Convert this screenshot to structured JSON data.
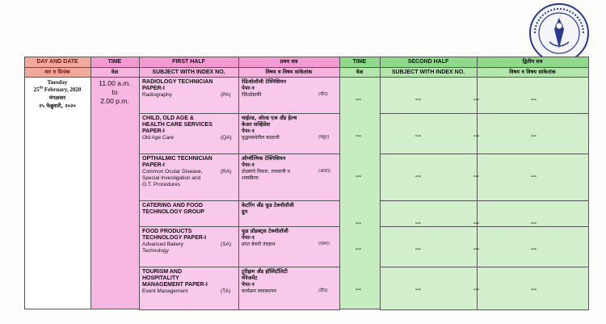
{
  "header": {
    "row1": [
      "DAY AND DATE",
      "TIME",
      "FIRST HALF",
      "प्रथम सत्र",
      "TIME",
      "SECOND HALF",
      "द्वितीय सत्र"
    ],
    "row2": [
      "वार व दिनांक",
      "वेळ",
      "SUBJECT WITH INDEX NO.",
      "विषय व विषय सांकेतांक",
      "वेळ",
      "SUBJECT WITH INDEX NO.",
      "विषय व विषय सांकेतांक"
    ]
  },
  "date": {
    "weekday": "Tuesday",
    "day": "25",
    "suffix": "th",
    "month_year": " February, 2020",
    "weekday_mr": "मंगळवार",
    "date_mr": "२५ फेब्रुवारी, २०२०"
  },
  "time": [
    "11.00 a.m.",
    "to",
    "2.00 p.m."
  ],
  "first_half": [
    {
      "title": [
        "RADIOLOGY TECHNICIAN",
        "PAPER-I"
      ],
      "subject": [
        "Radiography"
      ],
      "code": "(PA)",
      "title_mr": [
        "रेडिओलॉजी टेक्निशियन",
        "पेपर-१"
      ],
      "subject_mr": [
        "रेडिओग्राफी"
      ],
      "code_mr": "(पीए)"
    },
    {
      "title": [
        "CHILD, OLD AGE &",
        "HEALTH CARE SERVICES",
        "PAPER-I"
      ],
      "subject": [
        "Old Age Care"
      ],
      "code": "(QA)",
      "title_mr": [
        "चाईल्ड, ओल्ड एज अँड हेल्थ",
        "केअर सर्व्हिसेस",
        "पेपर-१"
      ],
      "subject_mr": [
        "वृद्धावस्थेतील काळजी"
      ],
      "code_mr": "(क्यूए)"
    },
    {
      "title": [
        "OPTHALMIC TECHNICIAN",
        "PAPER-I"
      ],
      "subject": [
        "Common Ocular Disease,",
        "Special Investigation and",
        "O.T. Procedures"
      ],
      "code": "(RA)",
      "title_mr": [
        "ऑप्थॅल्मिक टेक्निशियन",
        "पेपर-१"
      ],
      "subject_mr": [
        "डोळ्यांचे विकार, तपासणी व",
        "शस्त्रक्रिया"
      ],
      "code_mr": "(आरए)"
    },
    {
      "title": [
        "CATERING AND FOOD",
        "TECHNOLOGY GROUP"
      ],
      "title_mr": [
        "केटरिंग अँड फूड टेक्नॉलॉजी",
        "ग्रुप"
      ]
    },
    {
      "title": [
        "FOOD PRODUCTS",
        "TECHNOLOGY PAPER-I"
      ],
      "subject": [
        "Advanced Bakery",
        "Technology"
      ],
      "code": "(SA)",
      "title_mr": [
        "फूड प्रॉडक्ट्स टेक्नॉलॉजी",
        "पेपर-१"
      ],
      "subject_mr": [
        "प्रगत बेकरी तंत्रज्ञान"
      ],
      "code_mr": "(एसए)"
    },
    {
      "title": [
        "TOURISM AND",
        "HOSPITALITY",
        "MANAGEMENT PAPER-I"
      ],
      "subject": [
        "Event Management"
      ],
      "code": "(TA)",
      "title_mr": [
        "टूरीझम अँड हॉस्पिटॅलिटी",
        "मॅनेजमेंट",
        "पेपर-१"
      ],
      "subject_mr": [
        "कार्यक्रम व्यवस्थापन"
      ],
      "code_mr": "(टीए)"
    }
  ],
  "second_half": [
    [
      "---",
      "---",
      "---",
      "---"
    ],
    [
      "---",
      "---",
      "---",
      "---"
    ],
    [
      "---",
      "---",
      "---",
      "---"
    ],
    [
      "---",
      "---",
      "---",
      "---"
    ],
    [
      "---",
      "---",
      "---",
      "---"
    ],
    [
      "---",
      "---",
      "---",
      "---"
    ]
  ]
}
